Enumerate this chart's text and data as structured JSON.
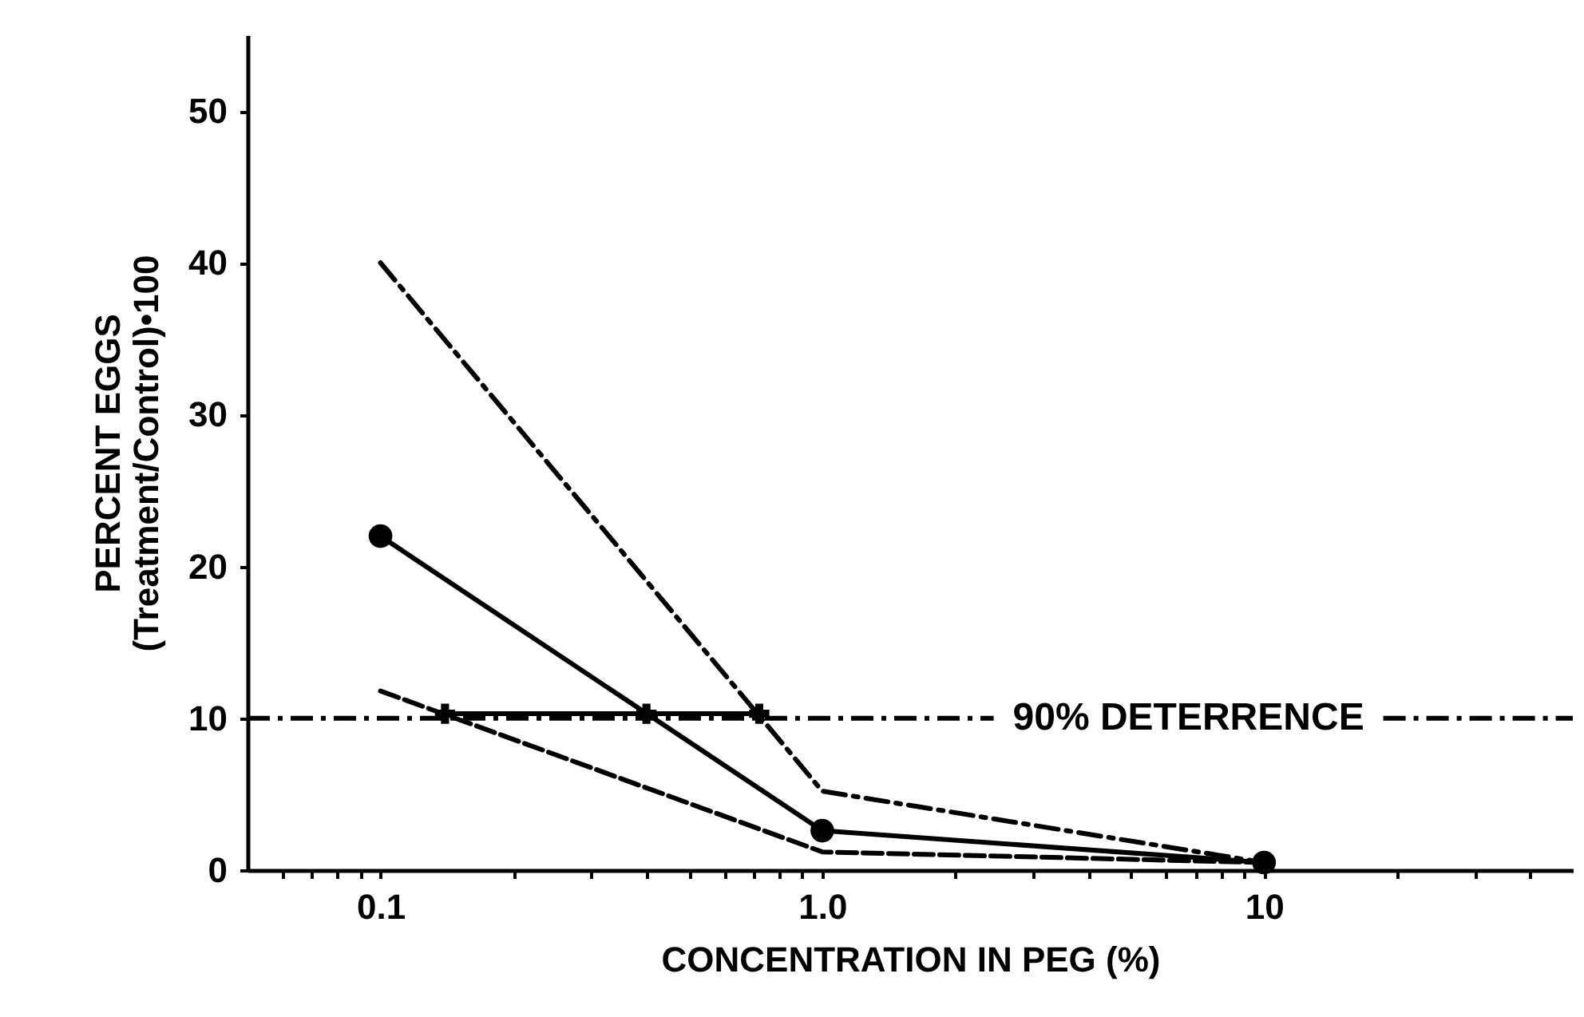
{
  "chart_data": {
    "type": "line",
    "xlabel": "CONCENTRATION IN PEG (%)",
    "ylabel": "PERCENT EGGS\n(Treatment/Control)•100",
    "log": "x",
    "xlim": [
      0.05,
      50
    ],
    "xticks": [
      {
        "value": 0.06,
        "label": null
      },
      {
        "value": 0.07,
        "label": null
      },
      {
        "value": 0.08,
        "label": null
      },
      {
        "value": 0.09,
        "label": null
      },
      0.1,
      {
        "value": 0.2,
        "label": null
      },
      {
        "value": 0.3,
        "label": null
      },
      {
        "value": 0.4,
        "label": null
      },
      {
        "value": 0.5,
        "label": null
      },
      {
        "value": 0.6,
        "label": null
      },
      {
        "value": 0.7,
        "label": null
      },
      {
        "value": 0.8,
        "label": null
      },
      {
        "value": 0.9,
        "label": null
      },
      {
        "value": 1,
        "label": "1.0"
      },
      {
        "value": 2,
        "label": null
      },
      {
        "value": 3,
        "label": null
      },
      {
        "value": 4,
        "label": null
      },
      {
        "value": 5,
        "label": null
      },
      {
        "value": 6,
        "label": null
      },
      {
        "value": 7,
        "label": null
      },
      {
        "value": 8,
        "label": null
      },
      {
        "value": 9,
        "label": null
      },
      10,
      {
        "value": 20,
        "label": null
      },
      {
        "value": 30,
        "label": null
      },
      {
        "value": 40,
        "label": null
      }
    ],
    "ylim": [
      0,
      55
    ],
    "yticks": [
      0,
      10,
      20,
      30,
      40,
      50
    ],
    "series": [
      {
        "color": "#000000",
        "x": [
          0.1,
          1,
          10
        ],
        "values": [
          40,
          5.2,
          0.5
        ],
        "line_style": "dashed",
        "marker": "none"
      },
      {
        "color": "#000000",
        "x": [
          0.1,
          1,
          10
        ],
        "values": [
          22,
          2.6,
          0.5
        ],
        "line_style": "solid",
        "marker": "circle"
      },
      {
        "color": "#000000",
        "x": [
          0.1,
          1,
          10
        ],
        "values": [
          11.8,
          1.2,
          0.5
        ],
        "line_style": "dotted",
        "marker": "none"
      },
      {
        "color": "#000000",
        "x": [
          0.14,
          0.4,
          0.72
        ],
        "values": [
          10.3,
          10.3,
          10.3
        ],
        "line_style": "solid",
        "marker": "cross"
      }
    ],
    "ref_lines": [
      {
        "axis": "y",
        "value": 10,
        "label": "90% DETERRENCE",
        "color": "#000000",
        "line_style": "dashed"
      }
    ]
  }
}
